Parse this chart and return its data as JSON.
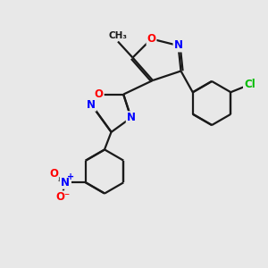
{
  "bg_color": "#e8e8e8",
  "bond_color": "#1a1a1a",
  "atom_colors": {
    "O": "#ff0000",
    "N": "#0000ff",
    "Cl": "#00bb00",
    "C": "#1a1a1a",
    "NO2_N": "#0000ff",
    "NO2_O": "#ff0000"
  },
  "lw": 1.6,
  "fs": 8.5
}
